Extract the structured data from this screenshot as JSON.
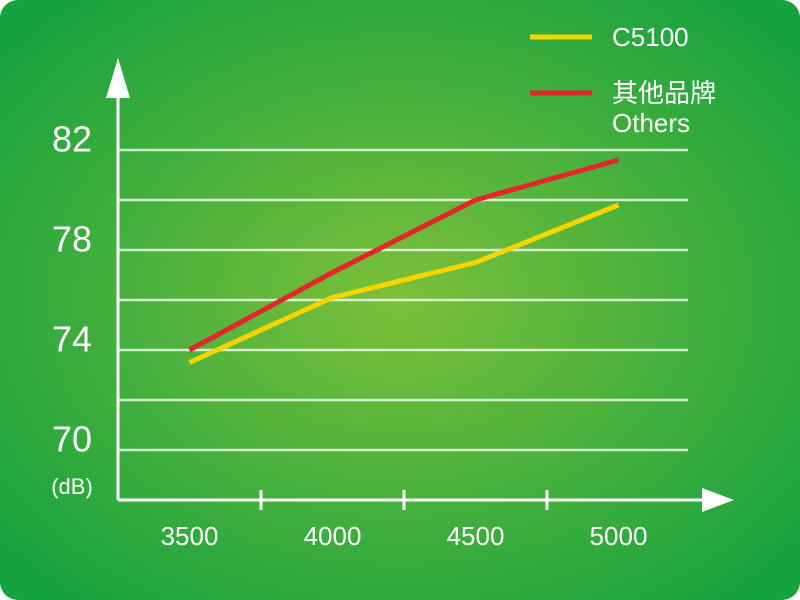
{
  "chart_data": {
    "type": "line",
    "categories": [
      "3500",
      "4000",
      "4500",
      "5000"
    ],
    "series": [
      {
        "name": "C5100",
        "color": "#f5d400",
        "values": [
          73.5,
          76.1,
          77.5,
          79.8
        ]
      },
      {
        "name": "其他品牌\nOthers",
        "color": "#e3262b",
        "values": [
          74,
          77.1,
          80,
          81.6
        ]
      }
    ],
    "y_unit": "(dB)",
    "ylim": [
      68,
      86
    ],
    "yticks": [
      70,
      74,
      78,
      82
    ],
    "ygrid": [
      70,
      72,
      74,
      76,
      78,
      80,
      82
    ],
    "grid": true,
    "legend": "top-right"
  }
}
